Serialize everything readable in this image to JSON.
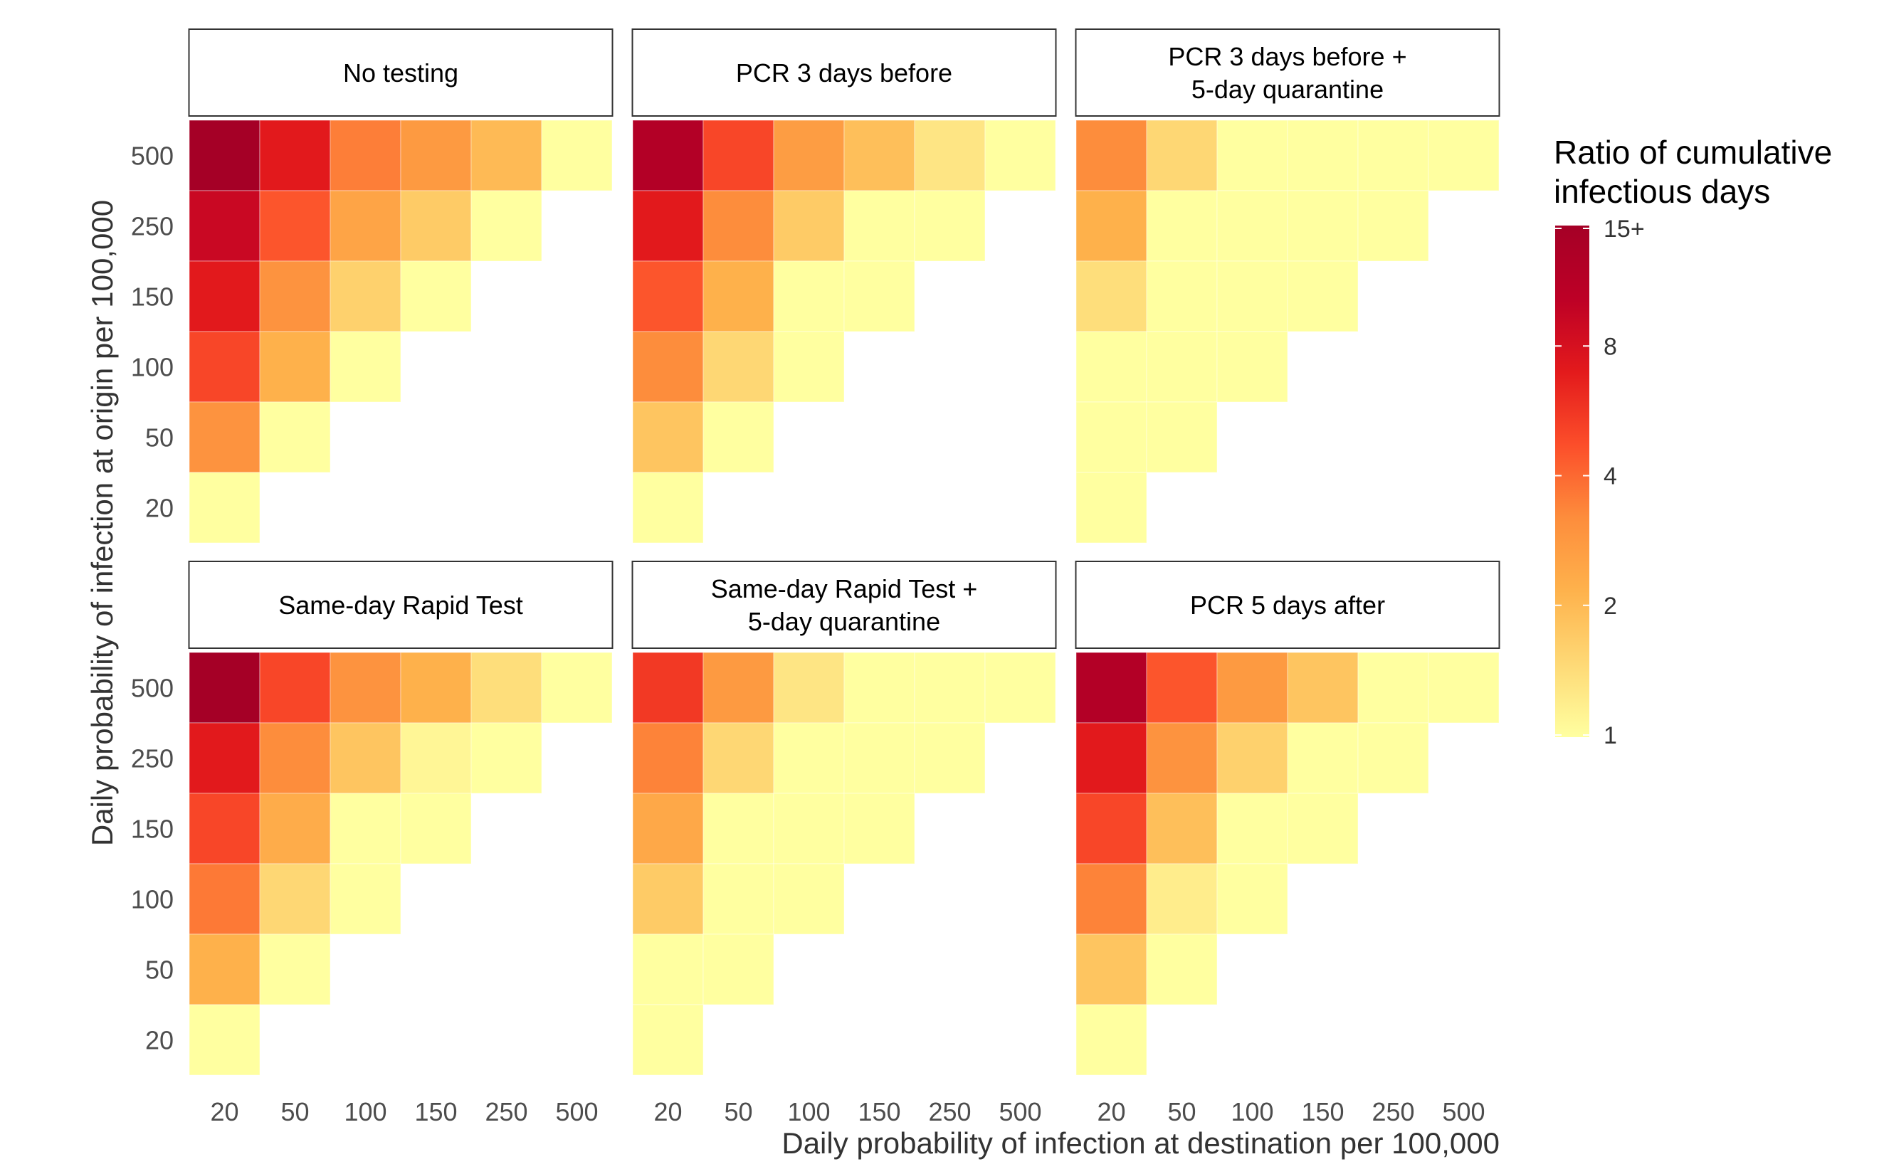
{
  "chart_data": {
    "type": "heatmap",
    "panels": [
      {
        "title": "No testing",
        "values": [
          [
            15,
            7,
            3.5,
            2.8,
            2,
            1
          ],
          [
            9,
            4.5,
            2.5,
            1.7,
            1
          ],
          [
            7,
            3,
            1.6,
            1
          ],
          [
            5,
            2.2,
            1
          ],
          [
            3,
            1
          ],
          [
            1
          ]
        ]
      },
      {
        "title": "PCR 3 days before",
        "values": [
          [
            12,
            5,
            2.7,
            1.9,
            1.3,
            1
          ],
          [
            7,
            3.2,
            1.7,
            1,
            1
          ],
          [
            4.5,
            2.2,
            1,
            1
          ],
          [
            3.2,
            1.5,
            1
          ],
          [
            1.8,
            1
          ],
          [
            1
          ]
        ]
      },
      {
        "title": "PCR 3 days before +\n5-day quarantine",
        "values": [
          [
            3.2,
            1.5,
            1,
            1,
            1,
            1
          ],
          [
            2.2,
            1,
            1,
            1,
            1
          ],
          [
            1.4,
            1,
            1,
            1
          ],
          [
            1,
            1,
            1
          ],
          [
            1,
            1
          ],
          [
            1
          ]
        ]
      },
      {
        "title": "Same-day Rapid Test",
        "values": [
          [
            15,
            5,
            3,
            2.2,
            1.4,
            1
          ],
          [
            7,
            3.2,
            1.8,
            1.1,
            1
          ],
          [
            5,
            2.3,
            1,
            1
          ],
          [
            3.6,
            1.5,
            1
          ],
          [
            2.2,
            1
          ],
          [
            1
          ]
        ]
      },
      {
        "title": "Same-day Rapid Test +\n5-day quarantine",
        "values": [
          [
            5.5,
            2.8,
            1.3,
            1,
            1,
            1
          ],
          [
            3.4,
            1.5,
            1,
            1,
            1
          ],
          [
            2.4,
            1,
            1,
            1
          ],
          [
            1.7,
            1,
            1
          ],
          [
            1,
            1
          ],
          [
            1
          ]
        ]
      },
      {
        "title": "PCR 5 days after",
        "values": [
          [
            12,
            4.5,
            2.8,
            1.8,
            1,
            1
          ],
          [
            7,
            3,
            1.6,
            1,
            1
          ],
          [
            5,
            1.9,
            1,
            1
          ],
          [
            3.4,
            1.2,
            1
          ],
          [
            1.8,
            1
          ],
          [
            1
          ]
        ]
      }
    ],
    "x_categories": [
      "20",
      "50",
      "100",
      "150",
      "250",
      "500"
    ],
    "y_categories": [
      "500",
      "250",
      "150",
      "100",
      "50",
      "20"
    ],
    "xlabel": "Daily probability of infection at destination per 100,000",
    "ylabel": "Daily probability of infection at origin per 100,000",
    "legend": {
      "title": "Ratio of cumulative\ninfectious days",
      "ticks": [
        "15+",
        "8",
        "4",
        "2",
        "1"
      ],
      "tick_values": [
        15,
        8,
        4,
        2,
        1
      ],
      "scale": "log",
      "placement": "right",
      "colors": [
        "#ffffa0",
        "#fed976",
        "#feb24c",
        "#fd8d3c",
        "#fc4e2a",
        "#e31a1c",
        "#bd0026",
        "#a50026"
      ]
    }
  }
}
